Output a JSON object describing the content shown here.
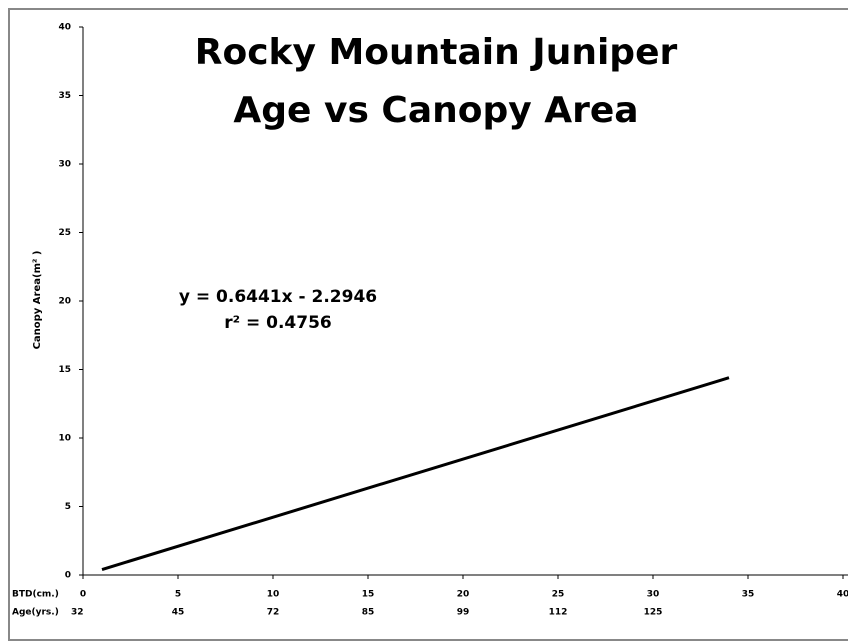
{
  "chart_data": {
    "type": "line",
    "title": [
      "Rocky Mountain Juniper",
      "Age vs Canopy Area"
    ],
    "y_label": "Canopy Area(m² )",
    "x_row_label": "BTD(cm.)",
    "age_row_label": "Age(yrs.)",
    "age_ticks": [
      32,
      45,
      72,
      85,
      99,
      112,
      125
    ],
    "annotations": [
      "y = 0.6441x - 2.2946",
      "r² = 0.4756"
    ],
    "x": [
      1,
      34
    ],
    "values": [
      0.4,
      14.4
    ],
    "color": "#000000",
    "xlim": [
      0,
      40
    ],
    "xticks": [
      0,
      5,
      10,
      15,
      20,
      25,
      30,
      35,
      40
    ],
    "ylim": [
      0,
      40
    ],
    "yticks": [
      0,
      5,
      10,
      15,
      20,
      25,
      30,
      35,
      40
    ]
  }
}
